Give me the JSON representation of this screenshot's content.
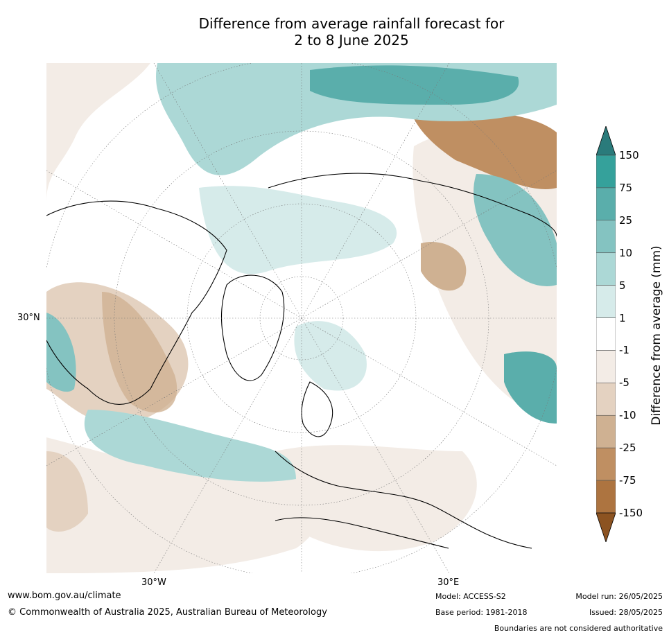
{
  "title": {
    "line1": "Difference from average rainfall forecast for",
    "line2": "2 to 8 June 2025"
  },
  "map": {
    "labels": {
      "lat_30n": "30°N",
      "lon_30w": "30°W",
      "lon_30e": "30°E"
    }
  },
  "colorbar": {
    "label": "Difference from average (mm)",
    "ticks": [
      "150",
      "75",
      "25",
      "10",
      "5",
      "1",
      "-1",
      "-5",
      "-10",
      "-25",
      "-75",
      "-150"
    ],
    "bin_colors": [
      "#2a7b7b",
      "#35a19b",
      "#5aaeab",
      "#84c3c1",
      "#acd8d6",
      "#d6ebea",
      "#ffffff",
      "#f3ece6",
      "#e4d2c1",
      "#cfb192",
      "#bf8f62",
      "#ad7440",
      "#8c5321"
    ]
  },
  "footer": {
    "url": "www.bom.gov.au/climate",
    "copyright": "© Commonwealth of Australia 2025, Australian Bureau of Meteorology",
    "model": "Model: ACCESS-S2",
    "base_period": "Base period: 1981-2018",
    "model_run": "Model run: 26/05/2025",
    "issued": "Issued: 28/05/2025",
    "disclaimer": "Boundaries are not considered authoritative"
  }
}
